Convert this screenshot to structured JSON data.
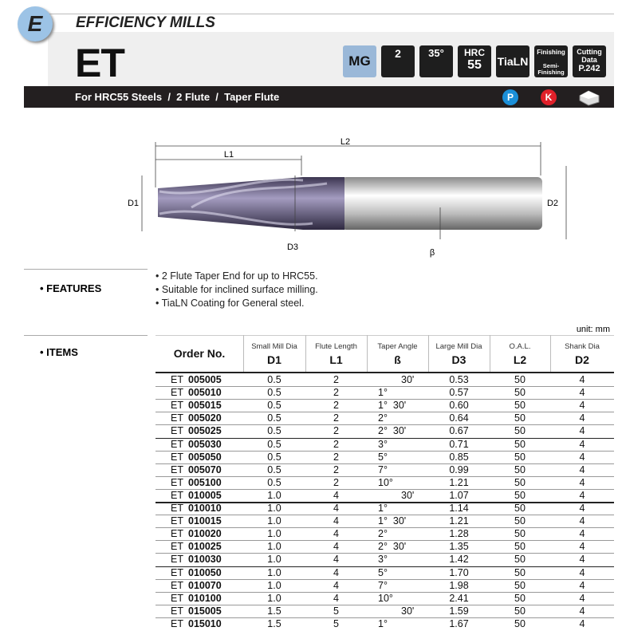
{
  "header": {
    "badge": "E",
    "section": "EFFICIENCY MILLS",
    "product": "ET",
    "subtitle": "For HRC55 Steels  /  2 Flute  /  Taper Flute"
  },
  "icons": {
    "material": "MG",
    "flutes": "2",
    "helix": "35°",
    "hardness_label": "HRC",
    "hardness_value": "55",
    "coating": "TiaLN",
    "finishing": "Finishing",
    "semi_finishing": "Semi-Finishing",
    "cutting_data": "Cutting Data",
    "cutting_page": "P.242",
    "group_p": "P",
    "group_k": "K"
  },
  "diagram": {
    "l2": "L2",
    "l1": "L1",
    "d1": "D1",
    "d2": "D2",
    "d3": "D3",
    "beta": "β"
  },
  "features": {
    "label": "• FEATURES",
    "items": [
      "• 2 Flute Taper End for up to HRC55.",
      "• Suitable for inclined surface milling.",
      "• TiaLN Coating for General steel."
    ]
  },
  "items": {
    "label": "• ITEMS",
    "unit": "unit: mm",
    "columns": [
      {
        "main": "Order No."
      },
      {
        "sub": "Small Mill Dia",
        "main": "D1"
      },
      {
        "sub": "Flute Length",
        "main": "L1"
      },
      {
        "sub": "Taper Angle",
        "main": "ß"
      },
      {
        "sub": "Large Mill Dia",
        "main": "D3"
      },
      {
        "sub": "O.A.L.",
        "main": "L2"
      },
      {
        "sub": "Shank Dia",
        "main": "D2"
      }
    ],
    "rows": [
      [
        "ET",
        "005005",
        "0.5",
        "2",
        "30'",
        "0.53",
        "50",
        "4"
      ],
      [
        "ET",
        "005010",
        "0.5",
        "2",
        "1°",
        "0.57",
        "50",
        "4"
      ],
      [
        "ET",
        "005015",
        "0.5",
        "2",
        "1°  30'",
        "0.60",
        "50",
        "4"
      ],
      [
        "ET",
        "005020",
        "0.5",
        "2",
        "2°",
        "0.64",
        "50",
        "4"
      ],
      [
        "ET",
        "005025",
        "0.5",
        "2",
        "2°  30'",
        "0.67",
        "50",
        "4"
      ],
      [
        "ET",
        "005030",
        "0.5",
        "2",
        "3°",
        "0.71",
        "50",
        "4"
      ],
      [
        "ET",
        "005050",
        "0.5",
        "2",
        "5°",
        "0.85",
        "50",
        "4"
      ],
      [
        "ET",
        "005070",
        "0.5",
        "2",
        "7°",
        "0.99",
        "50",
        "4"
      ],
      [
        "ET",
        "005100",
        "0.5",
        "2",
        "10°",
        "1.21",
        "50",
        "4"
      ],
      [
        "ET",
        "010005",
        "1.0",
        "4",
        "30'",
        "1.07",
        "50",
        "4"
      ],
      [
        "ET",
        "010010",
        "1.0",
        "4",
        "1°",
        "1.14",
        "50",
        "4"
      ],
      [
        "ET",
        "010015",
        "1.0",
        "4",
        "1°  30'",
        "1.21",
        "50",
        "4"
      ],
      [
        "ET",
        "010020",
        "1.0",
        "4",
        "2°",
        "1.28",
        "50",
        "4"
      ],
      [
        "ET",
        "010025",
        "1.0",
        "4",
        "2°  30'",
        "1.35",
        "50",
        "4"
      ],
      [
        "ET",
        "010030",
        "1.0",
        "4",
        "3°",
        "1.42",
        "50",
        "4"
      ],
      [
        "ET",
        "010050",
        "1.0",
        "4",
        "5°",
        "1.70",
        "50",
        "4"
      ],
      [
        "ET",
        "010070",
        "1.0",
        "4",
        "7°",
        "1.98",
        "50",
        "4"
      ],
      [
        "ET",
        "010100",
        "1.0",
        "4",
        "10°",
        "2.41",
        "50",
        "4"
      ],
      [
        "ET",
        "015005",
        "1.5",
        "5",
        "30'",
        "1.59",
        "50",
        "4"
      ],
      [
        "ET",
        "015010",
        "1.5",
        "5",
        "1°",
        "1.67",
        "50",
        "4"
      ]
    ]
  }
}
